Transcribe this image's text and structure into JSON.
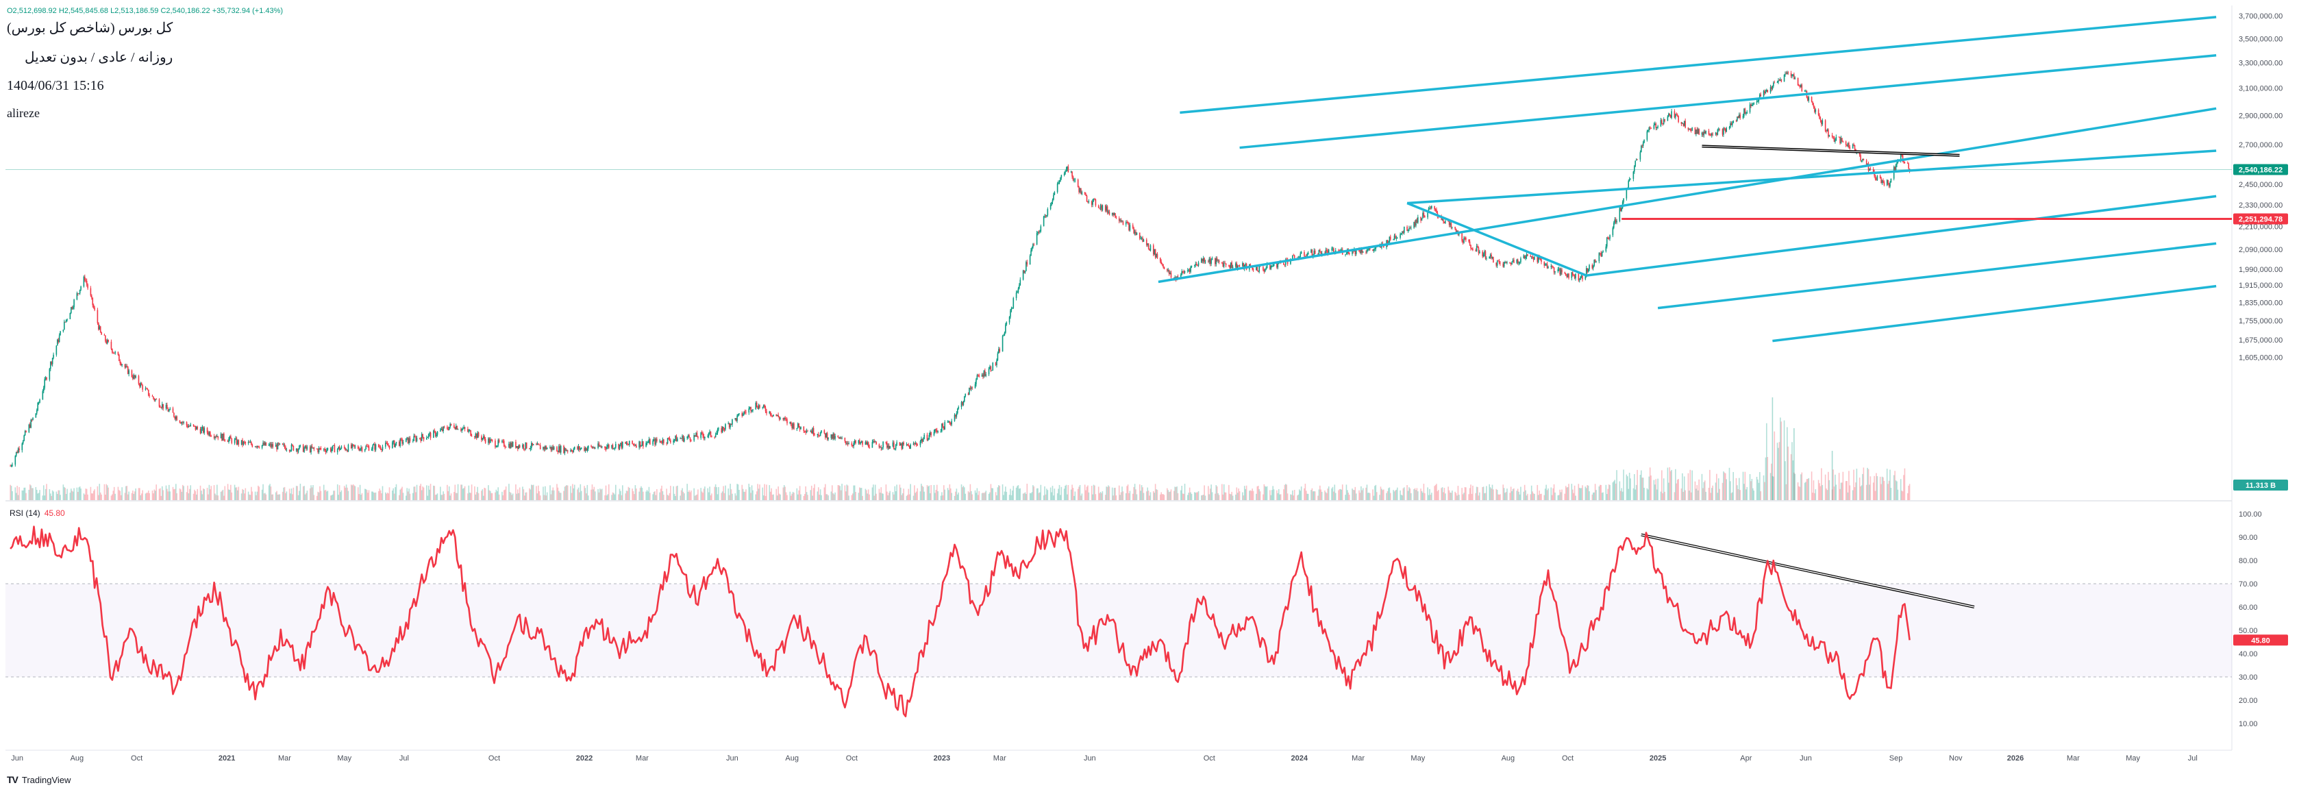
{
  "header": {
    "ohlc_line": "O2,512,698.92  H2,545,845.68  L2,513,186.59  C2,540,186.22  +35,732.94 (+1.43%)",
    "symbol_title": "کل بورس (شاخص کل بورس)",
    "interval_line": "روزانه / عادی / بدون تعدیل",
    "datetime": "1404/06/31 15:16",
    "author": "alireze"
  },
  "colors": {
    "up": "#089981",
    "down": "#f23645",
    "channel": "#1fb6d6",
    "trendline": "#000000",
    "rsi": "#f23645",
    "last_price_tag": "#089981",
    "red_level_tag": "#f23645",
    "volume_tag": "#26a69a"
  },
  "price_tags": {
    "last": "2,540,186.22",
    "red_level": "2,251,294.78",
    "volume": "11.313 B"
  },
  "rsi": {
    "title": "RSI (14)",
    "value": "45.80"
  },
  "footer": {
    "brand": "TradingView"
  },
  "chart_data": [
    {
      "type": "candlestick",
      "title": "کل بورس (شاخص کل بورس)",
      "y_scale": "log",
      "y_ticks": [
        "3,700,000.00",
        "3,500,000.00",
        "3,300,000.00",
        "3,100,000.00",
        "2,900,000.00",
        "2,700,000.00",
        "2,450,000.00",
        "2,330,000.00",
        "2,210,000.00",
        "2,090,000.00",
        "1,990,000.00",
        "1,915,000.00",
        "1,835,000.00",
        "1,755,000.00",
        "1,675,000.00",
        "1,605,000.00"
      ],
      "y_tick_values": [
        3700000,
        3500000,
        3300000,
        3100000,
        2900000,
        2700000,
        2450000,
        2330000,
        2210000,
        2090000,
        1990000,
        1915000,
        1835000,
        1755000,
        1675000,
        1605000
      ],
      "x_ticks": [
        "Jun",
        "Aug",
        "Oct",
        "2021",
        "Mar",
        "May",
        "Jul",
        "Oct",
        "2022",
        "Mar",
        "Jun",
        "Aug",
        "Oct",
        "2023",
        "Mar",
        "Jun",
        "Oct",
        "2024",
        "Mar",
        "May",
        "Aug",
        "Oct",
        "2025",
        "Apr",
        "Jun",
        "Sep",
        "Nov",
        "2026",
        "Mar",
        "May",
        "Jul"
      ],
      "price_path": [
        [
          "2020-05-25",
          1230000
        ],
        [
          "2020-06-20",
          1400000
        ],
        [
          "2020-07-15",
          1700000
        ],
        [
          "2020-08-09",
          1950000
        ],
        [
          "2020-08-25",
          1700000
        ],
        [
          "2020-09-20",
          1560000
        ],
        [
          "2020-10-15",
          1460000
        ],
        [
          "2020-11-20",
          1360000
        ],
        [
          "2021-01-15",
          1300000
        ],
        [
          "2021-04-01",
          1280000
        ],
        [
          "2021-06-10",
          1290000
        ],
        [
          "2021-08-01",
          1330000
        ],
        [
          "2021-08-20",
          1360000
        ],
        [
          "2021-10-01",
          1300000
        ],
        [
          "2021-12-15",
          1280000
        ],
        [
          "2022-03-01",
          1300000
        ],
        [
          "2022-05-15",
          1330000
        ],
        [
          "2022-06-25",
          1430000
        ],
        [
          "2022-08-01",
          1360000
        ],
        [
          "2022-10-01",
          1300000
        ],
        [
          "2022-12-01",
          1290000
        ],
        [
          "2023-01-10",
          1370000
        ],
        [
          "2023-02-05",
          1520000
        ],
        [
          "2023-02-25",
          1580000
        ],
        [
          "2023-03-15",
          1840000
        ],
        [
          "2023-04-15",
          2250000
        ],
        [
          "2023-05-08",
          2560000
        ],
        [
          "2023-05-25",
          2380000
        ],
        [
          "2023-07-01",
          2260000
        ],
        [
          "2023-08-05",
          2080000
        ],
        [
          "2023-08-25",
          1940000
        ],
        [
          "2023-09-25",
          2040000
        ],
        [
          "2023-10-25",
          2010000
        ],
        [
          "2023-11-25",
          1990000
        ],
        [
          "2024-01-10",
          2070000
        ],
        [
          "2024-02-15",
          2080000
        ],
        [
          "2024-03-20",
          2090000
        ],
        [
          "2024-04-25",
          2220000
        ],
        [
          "2024-05-15",
          2310000
        ],
        [
          "2024-06-20",
          2120000
        ],
        [
          "2024-07-25",
          2010000
        ],
        [
          "2024-08-25",
          2060000
        ],
        [
          "2024-09-20",
          1980000
        ],
        [
          "2024-10-15",
          1950000
        ],
        [
          "2024-11-05",
          2070000
        ],
        [
          "2024-11-25",
          2320000
        ],
        [
          "2024-12-20",
          2780000
        ],
        [
          "2025-01-15",
          2910000
        ],
        [
          "2025-02-10",
          2780000
        ],
        [
          "2025-03-10",
          2790000
        ],
        [
          "2025-04-10",
          3000000
        ],
        [
          "2025-05-05",
          3160000
        ],
        [
          "2025-05-15",
          3230000
        ],
        [
          "2025-06-01",
          3060000
        ],
        [
          "2025-06-25",
          2760000
        ],
        [
          "2025-07-20",
          2680000
        ],
        [
          "2025-08-10",
          2500000
        ],
        [
          "2025-08-25",
          2450000
        ],
        [
          "2025-09-05",
          2650000
        ],
        [
          "2025-09-15",
          2540186.22
        ]
      ],
      "volume_label": "11.313 B",
      "annotations": {
        "channel_lines": 7,
        "horizontal_level": 2251294.78,
        "last_price": 2540186.22
      }
    },
    {
      "type": "line",
      "title": "RSI (14)",
      "ylim": [
        0,
        100
      ],
      "y_ticks": [
        "100.00",
        "90.00",
        "80.00",
        "70.00",
        "60.00",
        "50.00",
        "40.00",
        "30.00",
        "20.00",
        "10.00"
      ],
      "y_tick_values": [
        100,
        90,
        80,
        70,
        60,
        50,
        40,
        30,
        20,
        10
      ],
      "series": [
        {
          "name": "RSI (14)",
          "points": [
            [
              "2020-05-25",
              88
            ],
            [
              "2020-06-20",
              91
            ],
            [
              "2020-07-15",
              85
            ],
            [
              "2020-08-09",
              92
            ],
            [
              "2020-08-25",
              60
            ],
            [
              "2020-09-05",
              30
            ],
            [
              "2020-09-25",
              48
            ],
            [
              "2020-10-15",
              35
            ],
            [
              "2020-11-10",
              26
            ],
            [
              "2020-12-01",
              55
            ],
            [
              "2020-12-20",
              68
            ],
            [
              "2021-01-10",
              42
            ],
            [
              "2021-01-30",
              22
            ],
            [
              "2021-02-25",
              48
            ],
            [
              "2021-03-20",
              35
            ],
            [
              "2021-04-15",
              68
            ],
            [
              "2021-05-10",
              44
            ],
            [
              "2021-06-05",
              32
            ],
            [
              "2021-07-01",
              50
            ],
            [
              "2021-07-25",
              78
            ],
            [
              "2021-08-20",
              92
            ],
            [
              "2021-09-05",
              58
            ],
            [
              "2021-10-01",
              30
            ],
            [
              "2021-10-25",
              55
            ],
            [
              "2021-11-20",
              46
            ],
            [
              "2021-12-15",
              27
            ],
            [
              "2022-01-10",
              55
            ],
            [
              "2022-02-05",
              42
            ],
            [
              "2022-03-05",
              50
            ],
            [
              "2022-04-01",
              82
            ],
            [
              "2022-04-25",
              64
            ],
            [
              "2022-05-20",
              78
            ],
            [
              "2022-06-15",
              48
            ],
            [
              "2022-07-10",
              32
            ],
            [
              "2022-08-05",
              55
            ],
            [
              "2022-09-01",
              38
            ],
            [
              "2022-09-25",
              20
            ],
            [
              "2022-10-15",
              48
            ],
            [
              "2022-11-05",
              24
            ],
            [
              "2022-11-25",
              16
            ],
            [
              "2022-12-20",
              52
            ],
            [
              "2023-01-15",
              88
            ],
            [
              "2023-02-05",
              55
            ],
            [
              "2023-03-01",
              82
            ],
            [
              "2023-03-20",
              74
            ],
            [
              "2023-04-10",
              88
            ],
            [
              "2023-05-08",
              92
            ],
            [
              "2023-05-25",
              42
            ],
            [
              "2023-06-20",
              55
            ],
            [
              "2023-07-15",
              32
            ],
            [
              "2023-08-10",
              45
            ],
            [
              "2023-08-30",
              30
            ],
            [
              "2023-09-20",
              66
            ],
            [
              "2023-10-15",
              45
            ],
            [
              "2023-11-10",
              55
            ],
            [
              "2023-12-05",
              34
            ],
            [
              "2024-01-01",
              82
            ],
            [
              "2024-01-25",
              48
            ],
            [
              "2024-02-20",
              28
            ],
            [
              "2024-03-15",
              45
            ],
            [
              "2024-04-10",
              82
            ],
            [
              "2024-05-05",
              60
            ],
            [
              "2024-05-30",
              36
            ],
            [
              "2024-06-25",
              54
            ],
            [
              "2024-07-20",
              32
            ],
            [
              "2024-08-15",
              24
            ],
            [
              "2024-09-10",
              74
            ],
            [
              "2024-10-05",
              32
            ],
            [
              "2024-10-30",
              55
            ],
            [
              "2024-11-25",
              86
            ],
            [
              "2024-12-20",
              88
            ],
            [
              "2025-01-15",
              62
            ],
            [
              "2025-02-10",
              44
            ],
            [
              "2025-03-10",
              56
            ],
            [
              "2025-04-05",
              44
            ],
            [
              "2025-04-25",
              80
            ],
            [
              "2025-05-15",
              62
            ],
            [
              "2025-06-05",
              44
            ],
            [
              "2025-07-01",
              38
            ],
            [
              "2025-07-20",
              20
            ],
            [
              "2025-08-10",
              50
            ],
            [
              "2025-08-25",
              22
            ],
            [
              "2025-09-08",
              64
            ],
            [
              "2025-09-15",
              45.8
            ]
          ]
        }
      ],
      "annotations": {
        "divergence_trendline": true
      }
    }
  ]
}
